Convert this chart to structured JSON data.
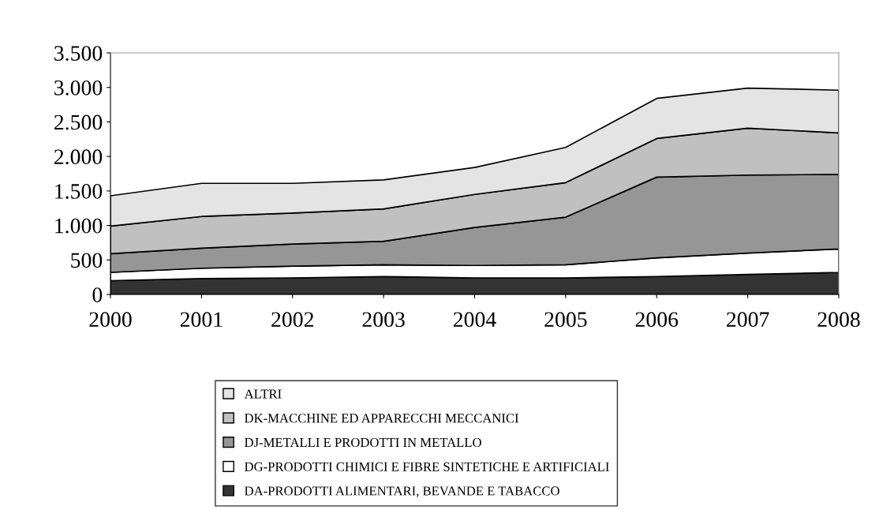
{
  "chart_data": {
    "type": "area",
    "stacked": true,
    "categories": [
      "2000",
      "2001",
      "2002",
      "2003",
      "2004",
      "2005",
      "2006",
      "2007",
      "2008"
    ],
    "series": [
      {
        "name": "DA-PRODOTTI ALIMENTARI, BEVANDE E TABACCO",
        "color": "#333333",
        "values": [
          200,
          230,
          240,
          260,
          240,
          240,
          260,
          290,
          320
        ]
      },
      {
        "name": "DG-PRODOTTI CHIMICI E FIBRE SINTETICHE E ARTIFICIALI",
        "color": "#ffffff",
        "values": [
          120,
          150,
          170,
          170,
          180,
          190,
          270,
          310,
          340
        ]
      },
      {
        "name": "DJ-METALLI E PRODOTTI IN METALLO",
        "color": "#969696",
        "values": [
          270,
          290,
          320,
          340,
          550,
          690,
          1170,
          1130,
          1080
        ]
      },
      {
        "name": "DK-MACCHINE ED APPARECCHI MECCANICI",
        "color": "#c0c0c0",
        "values": [
          400,
          460,
          450,
          470,
          480,
          500,
          560,
          680,
          600
        ]
      },
      {
        "name": "ALTRI",
        "color": "#e4e4e4",
        "values": [
          440,
          480,
          430,
          420,
          390,
          510,
          580,
          580,
          620
        ]
      }
    ],
    "ylim": [
      0,
      3500
    ],
    "yticks": [
      0,
      500,
      {
        "value": 1000,
        "label": "1.000"
      },
      {
        "value": 1500,
        "label": "1.500"
      },
      {
        "value": 2000,
        "label": "2.000"
      },
      {
        "value": 2500,
        "label": "2.500"
      },
      {
        "value": 3000,
        "label": "3.000"
      },
      {
        "value": 3500,
        "label": "3.500"
      }
    ],
    "grid": false,
    "legend": "bottom"
  }
}
